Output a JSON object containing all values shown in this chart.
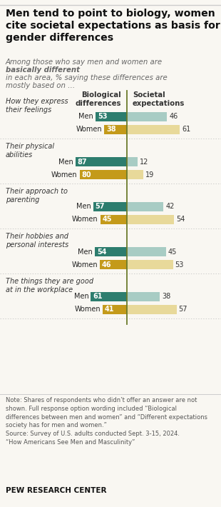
{
  "title": "Men tend to point to biology, women\ncite societal expectations as basis for\ngender differences",
  "col_header_left": "Biological\ndifferences",
  "col_header_right": "Societal\nexpectations",
  "categories": [
    "How they express\ntheir feelings",
    "Their physical\nabilities",
    "Their approach to\nparenting",
    "Their hobbies and\npersonal interests",
    "The things they are good\nat in the workplace"
  ],
  "men_bio": [
    53,
    87,
    57,
    54,
    61
  ],
  "men_soc": [
    46,
    12,
    42,
    45,
    38
  ],
  "women_bio": [
    38,
    80,
    45,
    46,
    41
  ],
  "women_soc": [
    61,
    19,
    54,
    53,
    57
  ],
  "men_bio_color": "#2d7d6e",
  "men_soc_color": "#a8ccc4",
  "women_bio_color": "#c49a1a",
  "women_soc_color": "#e8d99a",
  "center_line_color": "#6b7a2a",
  "note": "Note: Shares of respondents who didn’t offer an answer are not\nshown. Full response option wording included “Biological\ndifferences between men and women” and “Different expectations\nsociety has for men and women.”\nSource: Survey of U.S. adults conducted Sept. 3-15, 2024.\n“How Americans See Men and Masculinity”",
  "source_label": "PEW RESEARCH CENTER",
  "background_color": "#f9f7f2"
}
